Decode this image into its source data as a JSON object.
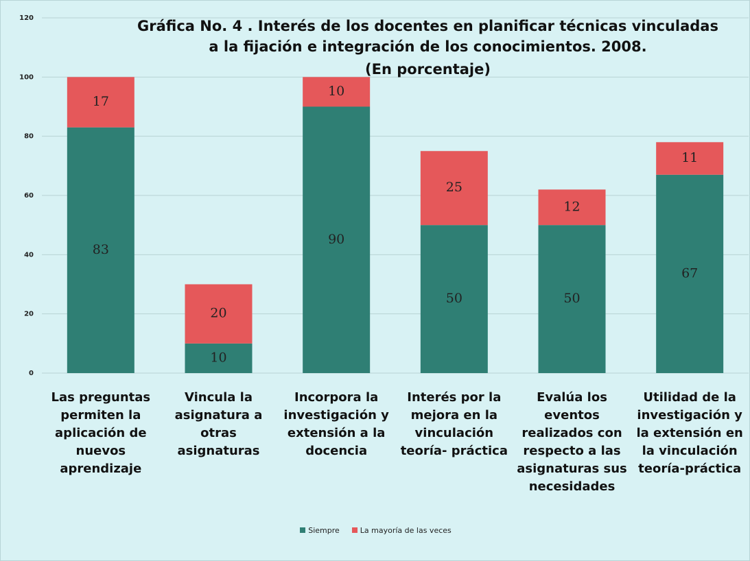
{
  "chart_data": {
    "type": "bar",
    "stacked": true,
    "title": "Gráfica No. 4 . Interés de los docentes en planificar técnicas vinculadas a la fijación e integración de los conocimientos. 2008.",
    "subtitle": "(En porcentaje)",
    "categories": [
      "Las preguntas permiten la aplicación de nuevos aprendizaje",
      "Vincula la asignatura a otras asignaturas",
      "Incorpora la investigación y extensión a la docencia",
      "Interés por la mejora en la vinculación teoría- práctica",
      "Evalúa los eventos realizados con respecto a las asignaturas sus necesidades",
      "Utilidad de la investigación y la extensión en la vinculación teoría-práctica"
    ],
    "series": [
      {
        "name": "Siempre",
        "color": "#2f7f74",
        "values": [
          83,
          10,
          90,
          50,
          50,
          67
        ]
      },
      {
        "name": "La mayoría de las veces",
        "color": "#e5585a",
        "values": [
          17,
          20,
          10,
          25,
          12,
          11
        ]
      }
    ],
    "ylim": [
      0,
      120
    ],
    "yticks": [
      0,
      20,
      40,
      60,
      80,
      100,
      120
    ],
    "grid": true,
    "legend": "bottom"
  }
}
